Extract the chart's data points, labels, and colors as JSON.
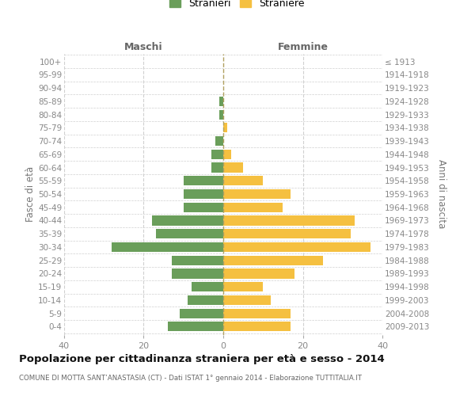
{
  "age_groups": [
    "100+",
    "95-99",
    "90-94",
    "85-89",
    "80-84",
    "75-79",
    "70-74",
    "65-69",
    "60-64",
    "55-59",
    "50-54",
    "45-49",
    "40-44",
    "35-39",
    "30-34",
    "25-29",
    "20-24",
    "15-19",
    "10-14",
    "5-9",
    "0-4"
  ],
  "birth_years": [
    "≤ 1913",
    "1914-1918",
    "1919-1923",
    "1924-1928",
    "1929-1933",
    "1934-1938",
    "1939-1943",
    "1944-1948",
    "1949-1953",
    "1954-1958",
    "1959-1963",
    "1964-1968",
    "1969-1973",
    "1974-1978",
    "1979-1983",
    "1984-1988",
    "1989-1993",
    "1994-1998",
    "1999-2003",
    "2004-2008",
    "2009-2013"
  ],
  "males": [
    0,
    0,
    0,
    1,
    1,
    0,
    2,
    3,
    3,
    10,
    10,
    10,
    18,
    17,
    28,
    13,
    13,
    8,
    9,
    11,
    14
  ],
  "females": [
    0,
    0,
    0,
    0,
    0,
    1,
    0,
    2,
    5,
    10,
    17,
    15,
    33,
    32,
    37,
    25,
    18,
    10,
    12,
    17,
    17
  ],
  "male_color": "#6a9e5a",
  "female_color": "#f5c040",
  "bg_color": "#ffffff",
  "grid_color": "#d0d0d0",
  "title": "Popolazione per cittadinanza straniera per età e sesso - 2014",
  "subtitle": "COMUNE DI MOTTA SANT’ANASTASIA (CT) - Dati ISTAT 1° gennaio 2014 - Elaborazione TUTTITALIA.IT",
  "label_maschi": "Maschi",
  "label_femmine": "Femmine",
  "ylabel_left": "Fasce di età",
  "ylabel_right": "Anni di nascita",
  "legend_male": "Stranieri",
  "legend_female": "Straniere",
  "xlim": 40
}
